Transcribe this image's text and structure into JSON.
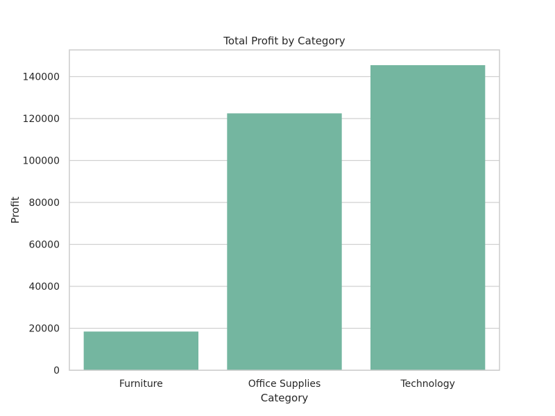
{
  "chart_data": {
    "type": "bar",
    "title": "Total Profit by Category",
    "xlabel": "Category",
    "ylabel": "Profit",
    "categories": [
      "Furniture",
      "Office Supplies",
      "Technology"
    ],
    "values": [
      18450,
      122490,
      145455
    ],
    "ylim": [
      0,
      152728
    ],
    "yticks": [
      0,
      20000,
      40000,
      60000,
      80000,
      100000,
      120000,
      140000
    ],
    "grid": "horizontal",
    "bar_color": "#74b6a0"
  }
}
